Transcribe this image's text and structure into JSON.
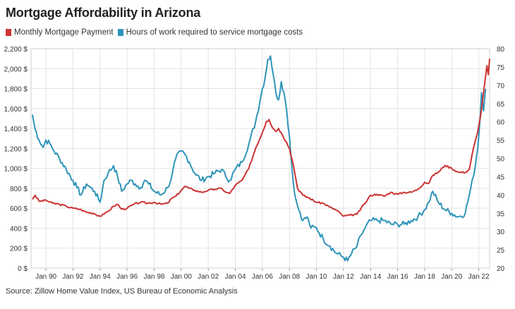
{
  "chart_data": {
    "type": "line",
    "title": "Mortgage Affordability in Arizona",
    "source": "Source: Zillow Home Value Index, US Bureau of Economic Analysis",
    "x_tick_labels": [
      "Jan 90",
      "Jan 92",
      "Jan 94",
      "Jan 96",
      "Jan 98",
      "Jan 00",
      "Jan 02",
      "Jan 04",
      "Jan 06",
      "Jan 08",
      "Jan 10",
      "Jan 12",
      "Jan 14",
      "Jan 16",
      "Jan 18",
      "Jan 20",
      "Jan 22"
    ],
    "x_tick_years": [
      1990,
      1992,
      1994,
      1996,
      1998,
      2000,
      2002,
      2004,
      2006,
      2008,
      2010,
      2012,
      2014,
      2016,
      2018,
      2020,
      2022
    ],
    "xlim": [
      1988.9,
      2022.8
    ],
    "y_left": {
      "lim": [
        0,
        2200
      ],
      "ticks": [
        0,
        200,
        400,
        600,
        800,
        1000,
        1200,
        1400,
        1600,
        1800,
        2000,
        2200
      ],
      "tick_labels": [
        "0 $",
        "200 $",
        "400 $",
        "600 $",
        "800 $",
        "1,000 $",
        "1,200 $",
        "1,400 $",
        "1,600 $",
        "1,800 $",
        "2,000 $",
        "2,200 $"
      ]
    },
    "y_right": {
      "lim": [
        20,
        80
      ],
      "ticks": [
        20,
        25,
        30,
        35,
        40,
        45,
        50,
        55,
        60,
        65,
        70,
        75,
        80
      ],
      "tick_labels": [
        "20",
        "25",
        "30",
        "35",
        "40",
        "45",
        "50",
        "55",
        "60",
        "65",
        "70",
        "75",
        "80"
      ]
    },
    "grid": true,
    "legend_position": "top-left",
    "series": [
      {
        "name": "Monthly Mortgage Payment",
        "axis": "left",
        "color": "#cc3333",
        "x": [
          1989.0,
          1989.2,
          1989.5,
          1990.0,
          1990.5,
          1991.0,
          1991.5,
          1992.0,
          1992.5,
          1993.0,
          1993.5,
          1994.0,
          1994.3,
          1994.6,
          1995.0,
          1995.3,
          1995.6,
          1996.0,
          1996.5,
          1997.0,
          1997.5,
          1998.0,
          1998.5,
          1999.0,
          1999.3,
          1999.6,
          2000.0,
          2000.3,
          2000.6,
          2001.0,
          2001.5,
          2002.0,
          2002.5,
          2003.0,
          2003.3,
          2003.6,
          2004.0,
          2004.5,
          2005.0,
          2005.5,
          2006.0,
          2006.3,
          2006.5,
          2006.7,
          2007.0,
          2007.2,
          2007.5,
          2007.8,
          2008.0,
          2008.3,
          2008.6,
          2009.0,
          2009.5,
          2010.0,
          2010.5,
          2011.0,
          2011.5,
          2012.0,
          2012.5,
          2013.0,
          2013.3,
          2013.6,
          2014.0,
          2014.5,
          2015.0,
          2015.5,
          2016.0,
          2016.5,
          2017.0,
          2017.5,
          2018.0,
          2018.3,
          2018.6,
          2019.0,
          2019.5,
          2020.0,
          2020.5,
          2021.0,
          2021.3,
          2021.6,
          2021.9,
          2022.1,
          2022.3,
          2022.5
        ],
        "values": [
          690,
          730,
          670,
          680,
          650,
          640,
          620,
          600,
          590,
          560,
          550,
          520,
          540,
          570,
          620,
          640,
          590,
          600,
          640,
          660,
          650,
          660,
          640,
          650,
          700,
          720,
          780,
          820,
          800,
          780,
          760,
          780,
          790,
          800,
          760,
          750,
          830,
          880,
          1000,
          1200,
          1360,
          1470,
          1490,
          1420,
          1370,
          1400,
          1330,
          1260,
          1200,
          1030,
          800,
          730,
          700,
          660,
          650,
          610,
          580,
          520,
          530,
          540,
          600,
          650,
          730,
          740,
          720,
          760,
          740,
          760,
          760,
          790,
          860,
          850,
          930,
          960,
          1030,
          1000,
          960,
          960,
          990,
          1200,
          1350,
          1500,
          1700,
          1920
        ],
        "end_values": [
          2030,
          1940,
          2100
        ]
      },
      {
        "name": "Hours of work required to service mortgage costs",
        "axis": "right",
        "color": "#2e94b9",
        "x": [
          1989.0,
          1989.2,
          1989.5,
          1989.8,
          1990.0,
          1990.3,
          1990.6,
          1991.0,
          1991.5,
          1992.0,
          1992.3,
          1992.6,
          1993.0,
          1993.3,
          1993.6,
          1994.0,
          1994.3,
          1994.6,
          1995.0,
          1995.3,
          1995.6,
          1996.0,
          1996.3,
          1996.6,
          1997.0,
          1997.3,
          1997.6,
          1998.0,
          1998.5,
          1999.0,
          1999.3,
          1999.6,
          2000.0,
          2000.3,
          2000.6,
          2001.0,
          2001.5,
          2002.0,
          2002.5,
          2003.0,
          2003.3,
          2003.6,
          2004.0,
          2004.5,
          2005.0,
          2005.5,
          2006.0,
          2006.2,
          2006.4,
          2006.6,
          2006.8,
          2007.0,
          2007.2,
          2007.4,
          2007.6,
          2007.8,
          2008.0,
          2008.2,
          2008.4,
          2008.6,
          2008.8,
          2009.0,
          2009.3,
          2009.6,
          2010.0,
          2010.5,
          2011.0,
          2011.5,
          2012.0,
          2012.3,
          2012.6,
          2013.0,
          2013.3,
          2013.6,
          2014.0,
          2014.5,
          2015.0,
          2015.5,
          2016.0,
          2016.5,
          2017.0,
          2017.5,
          2018.0,
          2018.3,
          2018.6,
          2019.0,
          2019.5,
          2020.0,
          2020.5,
          2021.0,
          2021.3,
          2021.6,
          2021.9,
          2022.1
        ],
        "values": [
          62,
          58,
          55,
          53,
          55,
          54,
          52,
          50,
          47,
          44,
          42,
          40,
          43,
          42,
          41,
          38,
          44,
          46,
          48,
          45,
          41,
          43,
          44,
          43,
          42,
          44,
          43,
          41,
          40,
          42,
          45,
          50,
          52,
          51,
          49,
          46,
          44,
          45,
          46,
          47,
          45,
          44,
          47,
          49,
          54,
          60,
          69,
          72,
          77,
          78,
          73,
          68,
          66,
          71,
          68,
          63,
          56,
          47,
          40,
          37,
          35,
          33,
          34,
          31,
          31,
          28,
          26,
          24,
          23,
          22,
          24,
          26,
          29,
          31,
          33,
          33,
          33,
          32,
          32,
          32,
          33,
          34,
          36,
          38,
          41,
          38,
          36,
          35,
          34,
          35,
          40,
          45,
          52,
          61
        ]
      }
    ],
    "hours_end_values": [
      68,
      63,
      69
    ]
  },
  "legend": {
    "items": [
      {
        "label": "Monthly Mortgage Payment",
        "color": "#cc3333"
      },
      {
        "label": "Hours of work required to service mortgage costs",
        "color": "#2e94b9"
      }
    ]
  }
}
